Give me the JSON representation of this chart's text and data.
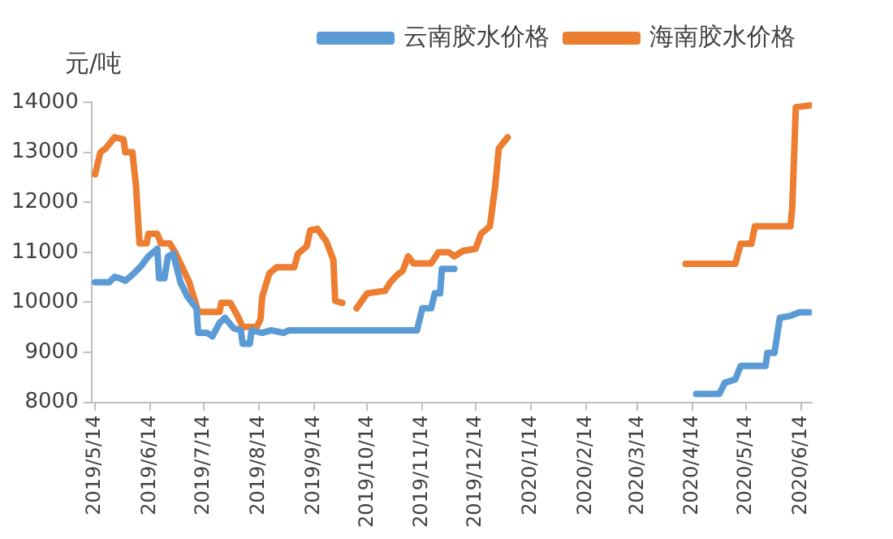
{
  "chart_data": {
    "type": "line",
    "ylabel": "元/吨",
    "legend": "top",
    "marker": "none",
    "line_style": "solid",
    "grid": false,
    "xlim": [
      "2019-05-12",
      "2020-06-20"
    ],
    "xticks": [
      {
        "value": "2019-05-14",
        "label": "2019/5/14"
      },
      {
        "value": "2019-06-14",
        "label": "2019/6/14"
      },
      {
        "value": "2019-07-14",
        "label": "2019/7/14"
      },
      {
        "value": "2019-08-14",
        "label": "2019/8/14"
      },
      {
        "value": "2019-09-14",
        "label": "2019/9/14"
      },
      {
        "value": "2019-10-14",
        "label": "2019/10/14"
      },
      {
        "value": "2019-11-14",
        "label": "2019/11/14"
      },
      {
        "value": "2019-12-14",
        "label": "2019/12/14"
      },
      {
        "value": "2020-01-14",
        "label": "2020/1/14"
      },
      {
        "value": "2020-02-14",
        "label": "2020/2/14"
      },
      {
        "value": "2020-03-14",
        "label": "2020/3/14"
      },
      {
        "value": "2020-04-14",
        "label": "2020/4/14"
      },
      {
        "value": "2020-05-14",
        "label": "2020/5/14"
      },
      {
        "value": "2020-06-14",
        "label": "2020/6/14"
      }
    ],
    "ylim": [
      8000,
      14000
    ],
    "yticks": [
      8000,
      9000,
      10000,
      11000,
      12000,
      13000,
      14000
    ],
    "series": [
      {
        "name": "云南胶水价格",
        "color": "#5b9bd5",
        "x": [
          "2019-05-14",
          "2019-05-22",
          "2019-05-25",
          "2019-05-28",
          "2019-05-31",
          "2019-06-04",
          "2019-06-09",
          "2019-06-13",
          "2019-06-18",
          "2019-06-19",
          "2019-06-22",
          "2019-06-24",
          "2019-06-27",
          "2019-07-01",
          "2019-07-05",
          "2019-07-10",
          "2019-07-11",
          "2019-07-16",
          "2019-07-19",
          "2019-07-23",
          "2019-07-26",
          "2019-07-31",
          "2019-08-04",
          "2019-08-05",
          "2019-08-09",
          "2019-08-10",
          "2019-08-16",
          "2019-08-21",
          "2019-08-28",
          "2019-08-31",
          "2019-11-11",
          "2019-11-14",
          "2019-11-19",
          "2019-11-21",
          "2019-11-24",
          "2019-11-25",
          "2019-12-02",
          "2020-01-15",
          "2020-04-16",
          "2020-04-29",
          "2020-05-02",
          "2020-05-08",
          "2020-05-11",
          "2020-05-25",
          "2020-05-26",
          "2020-05-30",
          "2020-06-02",
          "2020-06-08",
          "2020-06-13",
          "2020-06-19"
        ],
        "values": [
          10400,
          10400,
          10510,
          10480,
          10430,
          10550,
          10730,
          10920,
          11070,
          10480,
          10480,
          10920,
          10970,
          10400,
          10110,
          9880,
          9390,
          9390,
          9320,
          9590,
          9690,
          9480,
          9440,
          9170,
          9170,
          9440,
          9390,
          9440,
          9390,
          9440,
          9440,
          9880,
          9880,
          10180,
          10180,
          10670,
          10670,
          null,
          8170,
          8170,
          8390,
          8460,
          8730,
          8730,
          8990,
          8990,
          9690,
          9730,
          9800,
          9800
        ]
      },
      {
        "name": "海南胶水价格",
        "color": "#ed7d31",
        "x": [
          "2019-05-14",
          "2019-05-17",
          "2019-05-20",
          "2019-05-25",
          "2019-05-30",
          "2019-05-31",
          "2019-06-04",
          "2019-06-06",
          "2019-06-08",
          "2019-06-12",
          "2019-06-13",
          "2019-06-18",
          "2019-06-20",
          "2019-06-25",
          "2019-06-28",
          "2019-07-03",
          "2019-07-06",
          "2019-07-11",
          "2019-07-23",
          "2019-07-24",
          "2019-07-29",
          "2019-08-02",
          "2019-08-05",
          "2019-08-13",
          "2019-08-15",
          "2019-08-16",
          "2019-08-20",
          "2019-08-24",
          "2019-09-03",
          "2019-09-05",
          "2019-09-10",
          "2019-09-12",
          "2019-09-16",
          "2019-09-21",
          "2019-09-25",
          "2019-09-26",
          "2019-09-30",
          "2019-10-04",
          "2019-10-08",
          "2019-10-14",
          "2019-10-24",
          "2019-10-27",
          "2019-10-31",
          "2019-11-03",
          "2019-11-06",
          "2019-11-09",
          "2019-11-19",
          "2019-11-23",
          "2019-11-29",
          "2019-12-02",
          "2019-12-07",
          "2019-12-14",
          "2019-12-17",
          "2019-12-22",
          "2019-12-25",
          "2019-12-27",
          "2020-01-01",
          "2020-02-15",
          "2020-04-10",
          "2020-05-08",
          "2020-05-11",
          "2020-05-17",
          "2020-05-19",
          "2020-06-08",
          "2020-06-09",
          "2020-06-11",
          "2020-06-19"
        ],
        "values": [
          12560,
          13000,
          13080,
          13300,
          13260,
          13000,
          13000,
          12340,
          11180,
          11180,
          11370,
          11370,
          11180,
          11180,
          11000,
          10630,
          10400,
          9810,
          9810,
          9990,
          9990,
          9740,
          9510,
          9510,
          9660,
          10110,
          10580,
          10700,
          10700,
          10970,
          11120,
          11440,
          11470,
          11220,
          10850,
          10030,
          9990,
          null,
          9880,
          10180,
          10230,
          10400,
          10550,
          10630,
          10920,
          10780,
          10780,
          11000,
          11000,
          10920,
          11030,
          11070,
          11370,
          11520,
          12330,
          13080,
          13300,
          null,
          10770,
          10770,
          11170,
          11170,
          11520,
          11520,
          11890,
          13900,
          13940
        ]
      }
    ]
  }
}
